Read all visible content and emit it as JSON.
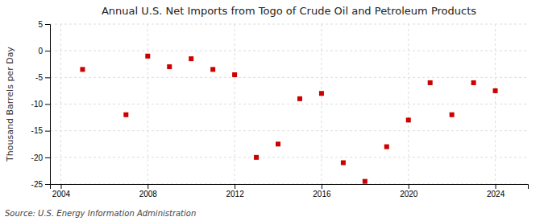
{
  "chart_data": {
    "type": "scatter",
    "title": "Annual U.S. Net Imports from Togo of Crude Oil and Petroleum Products",
    "y_label": "Thousand Barrels per Day",
    "annotations": [
      "Source: U.S. Energy Information Administration"
    ],
    "x": [
      2005,
      2007,
      2008,
      2009,
      2010,
      2011,
      2012,
      2013,
      2014,
      2015,
      2016,
      2017,
      2018,
      2019,
      2020,
      2021,
      2022,
      2023,
      2024
    ],
    "values": [
      -3.5,
      -12.0,
      -1.0,
      -3.0,
      -1.5,
      -3.5,
      -4.5,
      -20.0,
      -17.5,
      -9.0,
      -8.0,
      -21.0,
      -24.5,
      -18.0,
      -13.0,
      -6.0,
      -12.0,
      -6.0,
      -7.5
    ],
    "color": "#cc0000",
    "marker": "square",
    "xlim": [
      2003.5,
      2025.5
    ],
    "ylim": [
      -25,
      5
    ],
    "xticks": [
      2004,
      2008,
      2012,
      2016,
      2020,
      2024
    ],
    "yticks": [
      5,
      0,
      -5,
      -10,
      -15,
      -20,
      -25
    ],
    "grid": true
  }
}
